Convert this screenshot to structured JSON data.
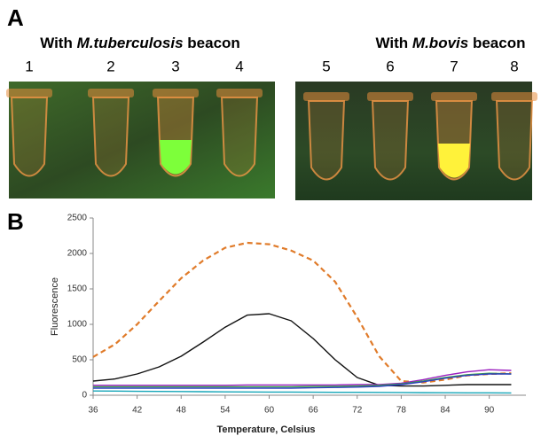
{
  "panel_a": {
    "label": "A",
    "captions": [
      {
        "prefix": "With ",
        "species": "M.tuberculosis",
        "suffix": " beacon"
      },
      {
        "prefix": "With ",
        "species": "M.bovis",
        "suffix": " beacon"
      }
    ],
    "tubes": [
      "1",
      "2",
      "3",
      "4",
      "5",
      "6",
      "7",
      "8"
    ]
  },
  "panel_b": {
    "label": "B"
  },
  "chart_data": {
    "type": "line",
    "xlabel": "Temperature, Celsius",
    "ylabel": "Fluorescence",
    "xlim": [
      36,
      95
    ],
    "xticks": [
      36,
      42,
      48,
      54,
      60,
      66,
      72,
      78,
      84,
      90
    ],
    "ylim": [
      0,
      2500
    ],
    "yticks": [
      0,
      500,
      1000,
      1500,
      2000,
      2500
    ],
    "x": [
      36,
      39,
      42,
      45,
      48,
      51,
      54,
      57,
      60,
      63,
      66,
      69,
      72,
      75,
      78,
      81,
      84,
      87,
      90,
      93
    ],
    "series": [
      {
        "color": "#e07b2a",
        "dashed": true,
        "values": [
          540,
          720,
          1000,
          1330,
          1650,
          1900,
          2080,
          2150,
          2130,
          2040,
          1900,
          1600,
          1100,
          550,
          200,
          180,
          220,
          280,
          300,
          310
        ]
      },
      {
        "color": "#111111",
        "dashed": false,
        "values": [
          200,
          230,
          300,
          400,
          550,
          750,
          960,
          1130,
          1150,
          1050,
          800,
          500,
          250,
          140,
          130,
          130,
          140,
          150,
          150,
          150
        ]
      },
      {
        "color": "#9b1fbf",
        "dashed": false,
        "values": [
          140,
          140,
          140,
          140,
          140,
          140,
          140,
          145,
          145,
          145,
          145,
          145,
          150,
          150,
          170,
          220,
          280,
          330,
          360,
          350
        ]
      },
      {
        "color": "#3aa048",
        "dashed": false,
        "values": [
          120,
          120,
          120,
          120,
          120,
          120,
          120,
          120,
          120,
          120,
          125,
          125,
          130,
          140,
          160,
          200,
          250,
          290,
          310,
          300
        ]
      },
      {
        "color": "#2d3fbf",
        "dashed": false,
        "values": [
          100,
          100,
          100,
          100,
          100,
          100,
          100,
          100,
          100,
          100,
          105,
          110,
          115,
          125,
          150,
          190,
          240,
          280,
          300,
          300
        ]
      },
      {
        "color": "#16a6b8",
        "dashed": false,
        "values": [
          60,
          58,
          56,
          54,
          52,
          50,
          48,
          46,
          45,
          44,
          43,
          42,
          41,
          40,
          38,
          36,
          35,
          34,
          33,
          32
        ]
      }
    ]
  }
}
